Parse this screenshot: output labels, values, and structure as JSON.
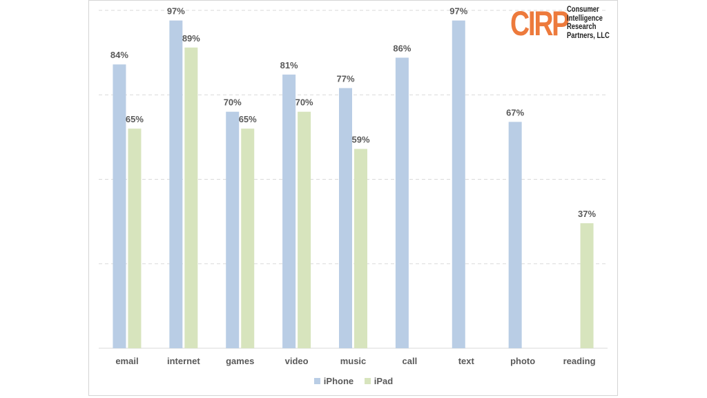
{
  "chart_data": {
    "type": "bar",
    "title": "",
    "xlabel": "",
    "ylabel": "",
    "ylim": [
      0,
      100
    ],
    "grid": true,
    "legend_position": "bottom",
    "categories": [
      "email",
      "internet",
      "games",
      "video",
      "music",
      "call",
      "text",
      "photo",
      "reading"
    ],
    "series": [
      {
        "name": "iPhone",
        "color": "#b9cde5",
        "values": [
          84,
          97,
          70,
          81,
          77,
          86,
          97,
          67,
          null
        ]
      },
      {
        "name": "iPad",
        "color": "#d7e4bd",
        "values": [
          65,
          89,
          65,
          70,
          59,
          null,
          null,
          null,
          37
        ]
      }
    ],
    "value_format": "{v}%"
  },
  "logo": {
    "mark": "CIRP",
    "lines": [
      "Consumer",
      "Intelligence",
      "Research",
      "Partners, LLC"
    ],
    "color": "#ed7a3c"
  }
}
